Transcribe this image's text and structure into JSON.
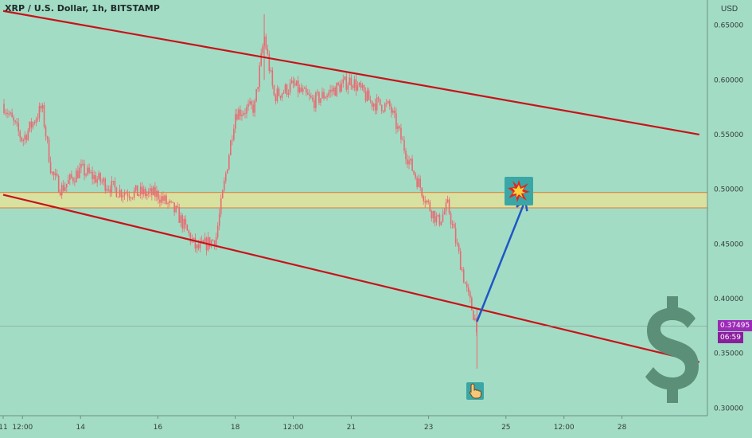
{
  "title": "XRP / U.S. Dollar, 1h, BITSTAMP",
  "unit": "USD",
  "last_price": "0.37495",
  "countdown": "06:59",
  "colors": {
    "background": "#a3dcc4",
    "candle": "#e86a72",
    "channel": "#c8121a",
    "zone_fill": "#e2e39a",
    "zone_edge": "#e07a3a",
    "arrow": "#1e56c8",
    "price_badge": "#9c2bb8",
    "countdown_badge": "#8a1f9e",
    "dollar": "#5c8f78"
  },
  "icons": {
    "explosion": "explosion-icon",
    "pointer": "pointing-hand-icon",
    "dollar": "dollar-sign-icon"
  },
  "chart_data": {
    "type": "candlestick",
    "title": "XRP / U.S. Dollar, 1h, BITSTAMP",
    "ylabel": "USD",
    "ylim": [
      0.293,
      0.673
    ],
    "y_ticks": [
      "0.65000",
      "0.60000",
      "0.55000",
      "0.50000",
      "0.45000",
      "0.40000",
      "0.35000",
      "0.30000"
    ],
    "x_ticks": [
      "11",
      "12:00",
      "14",
      "16",
      "18",
      "12:00",
      "21",
      "23",
      "25",
      "12:00",
      "28"
    ],
    "price_path": [
      {
        "t": "11",
        "price": 0.578
      },
      {
        "t": "11 12:00",
        "price": 0.545
      },
      {
        "t": "12",
        "price": 0.575
      },
      {
        "t": "12 06:00",
        "price": 0.515
      },
      {
        "t": "12 12:00",
        "price": 0.5
      },
      {
        "t": "13",
        "price": 0.518
      },
      {
        "t": "14",
        "price": 0.498
      },
      {
        "t": "15",
        "price": 0.495
      },
      {
        "t": "15 12:00",
        "price": 0.478
      },
      {
        "t": "16",
        "price": 0.445
      },
      {
        "t": "16 12:00",
        "price": 0.455
      },
      {
        "t": "17",
        "price": 0.57
      },
      {
        "t": "17 12:00",
        "price": 0.575
      },
      {
        "t": "17 18:00",
        "price": 0.64
      },
      {
        "t": "18",
        "price": 0.585
      },
      {
        "t": "18 12:00",
        "price": 0.595
      },
      {
        "t": "19",
        "price": 0.58
      },
      {
        "t": "19 12:00",
        "price": 0.59
      },
      {
        "t": "20",
        "price": 0.6
      },
      {
        "t": "20 12:00",
        "price": 0.58
      },
      {
        "t": "21",
        "price": 0.575
      },
      {
        "t": "21 12:00",
        "price": 0.525
      },
      {
        "t": "22",
        "price": 0.485
      },
      {
        "t": "22 06:00",
        "price": 0.47
      },
      {
        "t": "22 12:00",
        "price": 0.485
      },
      {
        "t": "23",
        "price": 0.405
      },
      {
        "t": "23 06:00",
        "price": 0.375
      }
    ],
    "resistance_zone": [
      0.483,
      0.497
    ],
    "channel_upper": {
      "from": {
        "t": "11",
        "price": 0.663
      },
      "to": {
        "t": "29",
        "price": 0.55
      }
    },
    "channel_lower": {
      "from": {
        "t": "11",
        "price": 0.495
      },
      "to": {
        "t": "29",
        "price": 0.342
      }
    },
    "projection_arrow": {
      "from": {
        "t": "23 06:00",
        "price": 0.379
      },
      "to": {
        "t": "24 12:00",
        "price": 0.49
      }
    },
    "last_price": 0.37495
  }
}
